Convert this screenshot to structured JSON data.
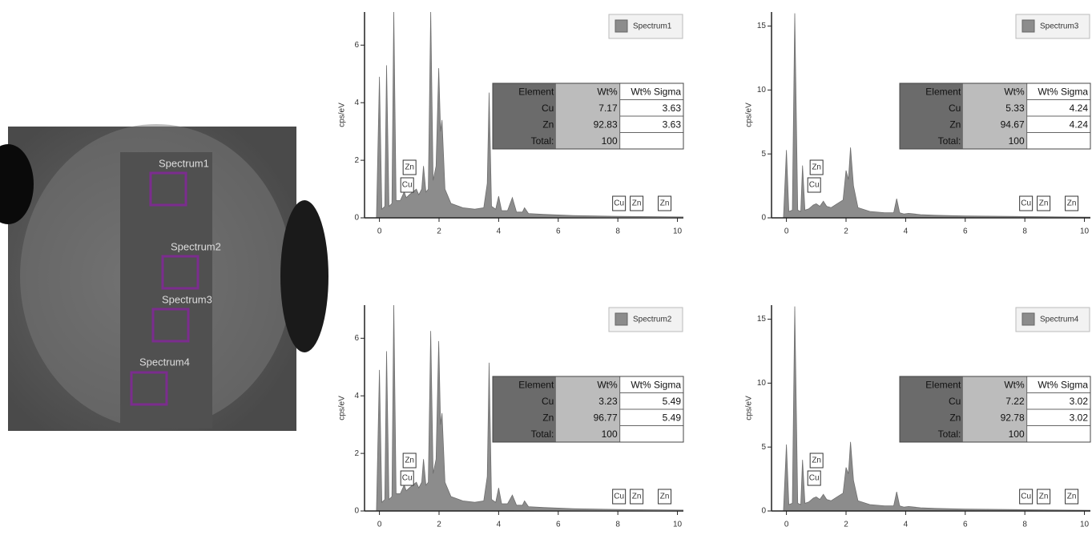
{
  "micrograph": {
    "regions": [
      {
        "label": "Spectrum1"
      },
      {
        "label": "Spectrum2"
      },
      {
        "label": "Spectrum3"
      },
      {
        "label": "Spectrum4"
      }
    ]
  },
  "chart_data": [
    {
      "type": "area",
      "y_label": "cps/eV",
      "xlim": [
        -0.5,
        10.2
      ],
      "xticks": [
        0,
        2,
        4,
        6,
        8,
        10
      ],
      "ylim": [
        0,
        7.15
      ],
      "yticks": [
        0,
        2,
        4,
        6
      ],
      "x": [
        -0.1,
        0.0,
        0.08,
        0.18,
        0.24,
        0.32,
        0.42,
        0.48,
        0.56,
        0.7,
        0.83,
        0.9,
        1.0,
        1.12,
        1.24,
        1.32,
        1.42,
        1.48,
        1.56,
        1.64,
        1.72,
        1.8,
        1.9,
        1.99,
        2.05,
        2.1,
        2.2,
        2.4,
        2.8,
        3.2,
        3.5,
        3.62,
        3.68,
        3.76,
        3.9,
        4.0,
        4.1,
        4.3,
        4.46,
        4.6,
        4.8,
        4.87,
        5.0,
        5.5,
        6.5,
        8,
        10.2
      ],
      "series": [
        {
          "name": "Spectrum1",
          "color": "#8c8c8c",
          "values": [
            0,
            4.9,
            0.3,
            0.4,
            5.3,
            0.4,
            0.5,
            7.2,
            0.6,
            0.6,
            0.9,
            0.7,
            0.8,
            0.9,
            1.0,
            0.8,
            1.0,
            1.8,
            0.9,
            1.0,
            7.2,
            1.3,
            1.8,
            5.2,
            3.0,
            3.4,
            1.0,
            0.5,
            0.35,
            0.3,
            0.35,
            1.2,
            4.35,
            0.4,
            0.3,
            0.75,
            0.25,
            0.25,
            0.7,
            0.2,
            0.2,
            0.35,
            0.15,
            0.12,
            0.08,
            0.05,
            0.03
          ]
        }
      ],
      "peak_labels": [
        {
          "text": "Cu",
          "x": 0.93
        },
        {
          "text": "Zn",
          "x": 1.01
        },
        {
          "text": "Cu",
          "x": 8.04
        },
        {
          "text": "Zn",
          "x": 8.63
        },
        {
          "text": "Zn",
          "x": 9.57
        }
      ],
      "table": {
        "columns": [
          "Element",
          "Wt%",
          "Wt% Sigma"
        ],
        "rows": [
          [
            "Cu",
            7.17,
            3.63
          ],
          [
            "Zn",
            92.83,
            3.63
          ],
          [
            "Total:",
            100,
            null
          ]
        ]
      }
    },
    {
      "type": "area",
      "y_label": "cps/eV",
      "xlim": [
        -0.5,
        10.2
      ],
      "xticks": [
        0,
        2,
        4,
        6,
        8,
        10
      ],
      "ylim": [
        0,
        16.1
      ],
      "yticks": [
        0,
        5,
        10,
        15
      ],
      "x": [
        -0.1,
        0.0,
        0.08,
        0.2,
        0.28,
        0.38,
        0.48,
        0.54,
        0.62,
        0.75,
        0.9,
        1.0,
        1.12,
        1.24,
        1.35,
        1.5,
        1.7,
        1.9,
        2.0,
        2.08,
        2.15,
        2.25,
        2.4,
        2.8,
        3.3,
        3.6,
        3.7,
        3.8,
        3.95,
        4.1,
        4.5,
        5,
        6,
        8,
        10.2
      ],
      "series": [
        {
          "name": "Spectrum3",
          "color": "#8c8c8c",
          "values": [
            0,
            5.3,
            0.5,
            0.6,
            16,
            0.6,
            0.5,
            4.1,
            0.6,
            0.7,
            1.0,
            1.1,
            0.9,
            1.3,
            0.9,
            0.8,
            1.1,
            1.4,
            3.7,
            3.0,
            5.5,
            2.5,
            0.8,
            0.5,
            0.4,
            0.4,
            1.5,
            0.4,
            0.3,
            0.35,
            0.25,
            0.2,
            0.15,
            0.1,
            0.05
          ]
        }
      ],
      "peak_labels": [
        {
          "text": "Cu",
          "x": 0.93
        },
        {
          "text": "Zn",
          "x": 1.01
        },
        {
          "text": "Cu",
          "x": 8.04
        },
        {
          "text": "Zn",
          "x": 8.63
        },
        {
          "text": "Zn",
          "x": 9.57
        }
      ],
      "table": {
        "columns": [
          "Element",
          "Wt%",
          "Wt% Sigma"
        ],
        "rows": [
          [
            "Cu",
            5.33,
            4.24
          ],
          [
            "Zn",
            94.67,
            4.24
          ],
          [
            "Total:",
            100,
            null
          ]
        ]
      }
    },
    {
      "type": "area",
      "y_label": "cps/eV",
      "xlim": [
        -0.5,
        10.2
      ],
      "xticks": [
        0,
        2,
        4,
        6,
        8,
        10
      ],
      "ylim": [
        0,
        7.15
      ],
      "yticks": [
        0,
        2,
        4,
        6
      ],
      "x": [
        -0.1,
        0.0,
        0.08,
        0.18,
        0.24,
        0.32,
        0.42,
        0.48,
        0.56,
        0.7,
        0.83,
        0.9,
        1.0,
        1.12,
        1.24,
        1.32,
        1.42,
        1.48,
        1.56,
        1.64,
        1.72,
        1.8,
        1.9,
        1.99,
        2.05,
        2.1,
        2.2,
        2.4,
        2.8,
        3.2,
        3.5,
        3.62,
        3.68,
        3.76,
        3.9,
        4.0,
        4.1,
        4.3,
        4.46,
        4.6,
        4.8,
        4.87,
        5.0,
        5.5,
        6.5,
        8,
        10.2
      ],
      "series": [
        {
          "name": "Spectrum2",
          "color": "#8c8c8c",
          "values": [
            0,
            4.9,
            0.3,
            0.4,
            5.55,
            0.4,
            0.5,
            7.2,
            0.6,
            0.6,
            0.9,
            0.7,
            0.8,
            0.9,
            1.0,
            0.8,
            1.0,
            1.8,
            0.9,
            1.0,
            6.25,
            1.3,
            1.8,
            5.9,
            3.0,
            3.4,
            1.0,
            0.5,
            0.35,
            0.3,
            0.35,
            1.2,
            5.15,
            0.4,
            0.3,
            0.8,
            0.25,
            0.25,
            0.55,
            0.2,
            0.2,
            0.35,
            0.15,
            0.12,
            0.08,
            0.05,
            0.03
          ]
        }
      ],
      "peak_labels": [
        {
          "text": "Cu",
          "x": 0.93
        },
        {
          "text": "Zn",
          "x": 1.01
        },
        {
          "text": "Cu",
          "x": 8.04
        },
        {
          "text": "Zn",
          "x": 8.63
        },
        {
          "text": "Zn",
          "x": 9.57
        }
      ],
      "table": {
        "columns": [
          "Element",
          "Wt%",
          "Wt% Sigma"
        ],
        "rows": [
          [
            "Cu",
            3.23,
            5.49
          ],
          [
            "Zn",
            96.77,
            5.49
          ],
          [
            "Total:",
            100,
            null
          ]
        ]
      }
    },
    {
      "type": "area",
      "y_label": "cps/eV",
      "xlim": [
        -0.5,
        10.2
      ],
      "xticks": [
        0,
        2,
        4,
        6,
        8,
        10
      ],
      "ylim": [
        0,
        16.1
      ],
      "yticks": [
        0,
        5,
        10,
        15
      ],
      "x": [
        -0.1,
        0.0,
        0.08,
        0.2,
        0.28,
        0.38,
        0.48,
        0.54,
        0.62,
        0.75,
        0.9,
        1.0,
        1.12,
        1.24,
        1.35,
        1.5,
        1.7,
        1.9,
        2.0,
        2.08,
        2.15,
        2.25,
        2.4,
        2.8,
        3.3,
        3.6,
        3.7,
        3.8,
        3.95,
        4.1,
        4.5,
        5,
        6,
        8,
        10.2
      ],
      "series": [
        {
          "name": "Spectrum4",
          "color": "#8c8c8c",
          "values": [
            0,
            5.2,
            0.5,
            0.6,
            16,
            0.6,
            0.5,
            4.0,
            0.6,
            0.7,
            1.0,
            1.1,
            0.9,
            1.3,
            0.9,
            0.8,
            1.1,
            1.4,
            3.4,
            2.9,
            5.4,
            2.4,
            0.8,
            0.5,
            0.4,
            0.4,
            1.5,
            0.4,
            0.3,
            0.35,
            0.25,
            0.2,
            0.15,
            0.1,
            0.05
          ]
        }
      ],
      "peak_labels": [
        {
          "text": "Cu",
          "x": 0.93
        },
        {
          "text": "Zn",
          "x": 1.01
        },
        {
          "text": "Cu",
          "x": 8.04
        },
        {
          "text": "Zn",
          "x": 8.63
        },
        {
          "text": "Zn",
          "x": 9.57
        }
      ],
      "table": {
        "columns": [
          "Element",
          "Wt%",
          "Wt% Sigma"
        ],
        "rows": [
          [
            "Cu",
            7.22,
            3.02
          ],
          [
            "Zn",
            92.78,
            3.02
          ],
          [
            "Total:",
            100,
            null
          ]
        ]
      }
    }
  ]
}
